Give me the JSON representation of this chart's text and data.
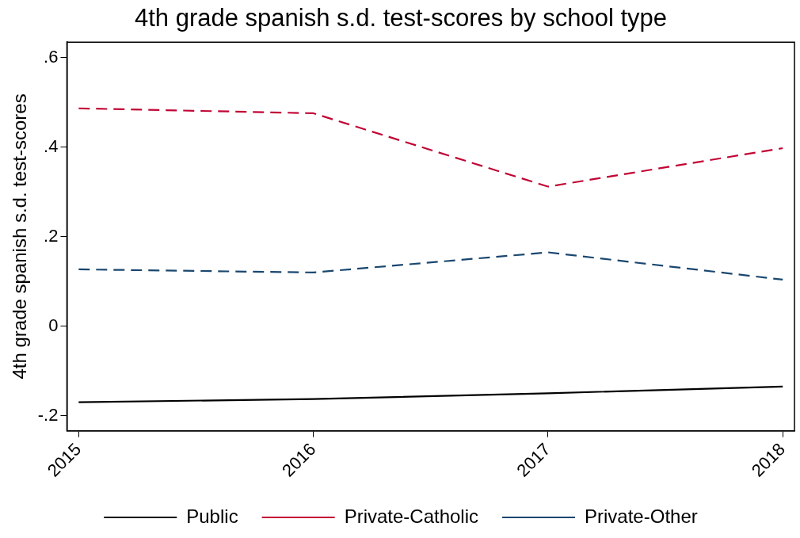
{
  "chart_data": {
    "type": "line",
    "title": "4th grade spanish s.d. test-scores by school type",
    "ylabel": "4th grade spanish s.d. test-scores",
    "x": [
      2015,
      2016,
      2017,
      2018
    ],
    "xlim": [
      2014.95,
      2018.05
    ],
    "xticks": [
      2015,
      2016,
      2017,
      2018
    ],
    "ylim": [
      -0.234,
      0.635
    ],
    "yticks": [
      {
        "value": -0.2,
        "label": "-.2"
      },
      0,
      {
        "value": 0.2,
        "label": ".2"
      },
      {
        "value": 0.4,
        "label": ".4"
      },
      {
        "value": 0.6,
        "label": ".6"
      }
    ],
    "grid": false,
    "legend": "bottom",
    "marker": "none",
    "series": [
      {
        "name": "Public",
        "color": "#000000",
        "line_style": "solid",
        "values": [
          -0.17,
          -0.163,
          -0.15,
          -0.135
        ]
      },
      {
        "name": "Private-Catholic",
        "color": "#c10534",
        "line_style": "dashed",
        "values": [
          0.487,
          0.476,
          0.312,
          0.398
        ]
      },
      {
        "name": "Private-Other",
        "color": "#1a476f",
        "line_style": "dashed",
        "values": [
          0.127,
          0.12,
          0.165,
          0.104
        ]
      }
    ]
  }
}
